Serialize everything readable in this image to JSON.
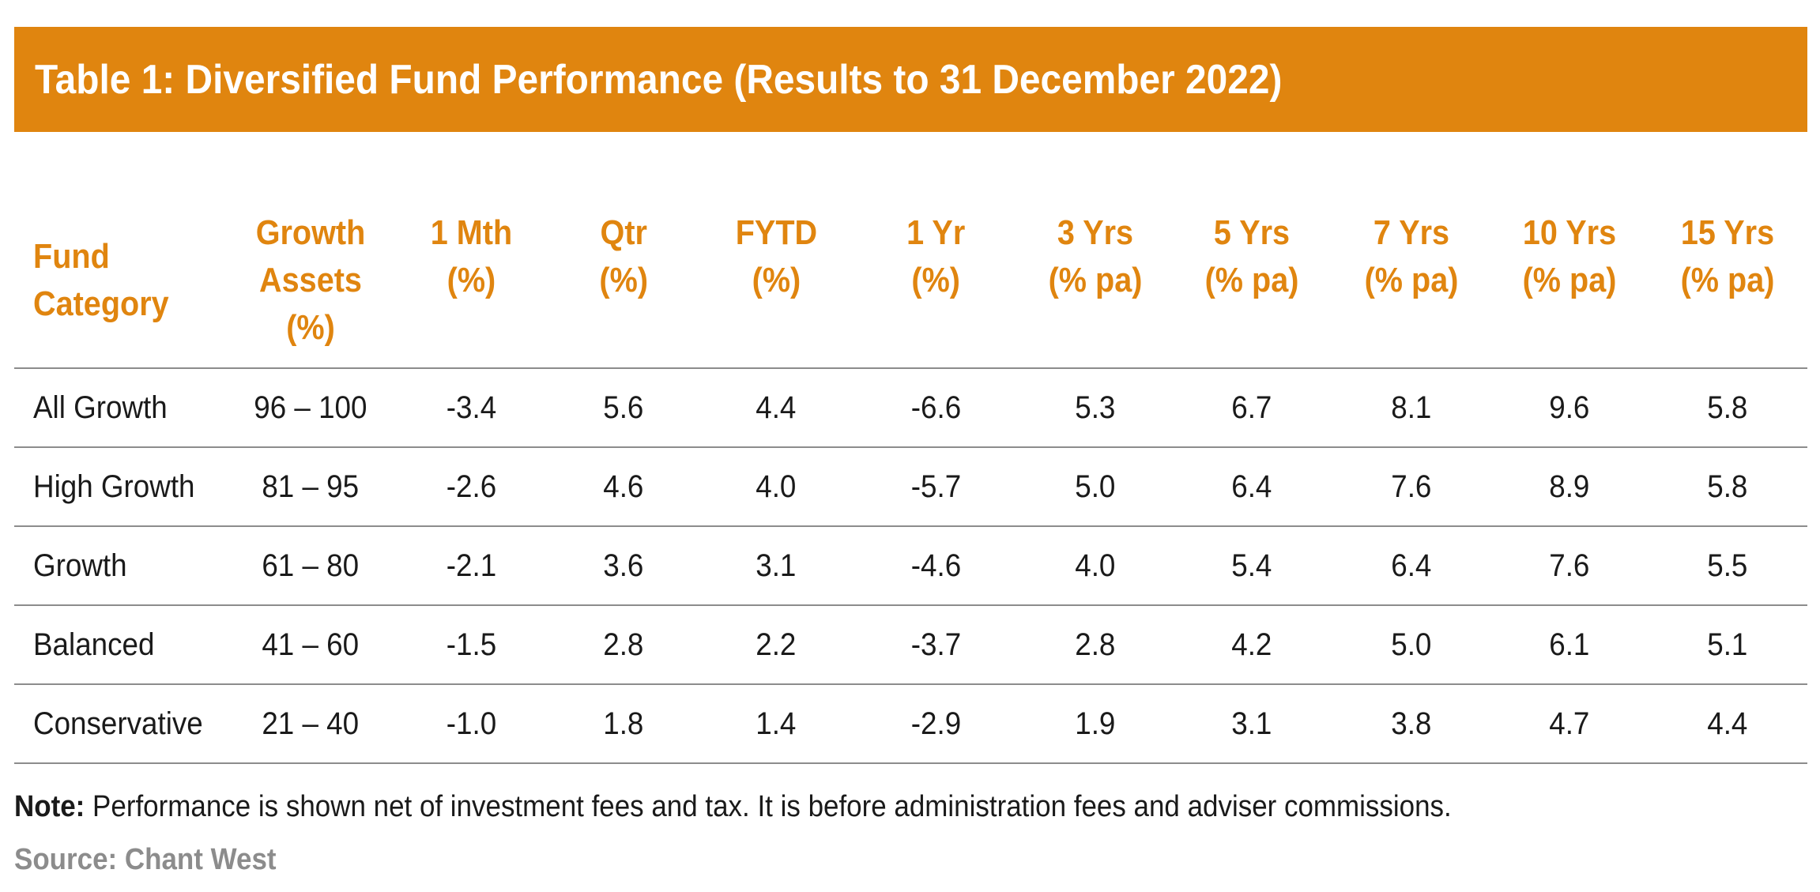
{
  "title": "Table 1:  Diversified Fund Performance (Results to 31 December 2022)",
  "colors": {
    "accent": "#e0850f",
    "source_text": "#8c8c8c",
    "rule": "#8c8c8c"
  },
  "table": {
    "headers": [
      [
        "Fund",
        "Category"
      ],
      [
        "Growth",
        "Assets",
        "(%)"
      ],
      [
        "1 Mth",
        "(%)"
      ],
      [
        "Qtr",
        "(%)"
      ],
      [
        "FYTD",
        "(%)"
      ],
      [
        "1 Yr",
        "(%)"
      ],
      [
        "3 Yrs",
        "(% pa)"
      ],
      [
        "5 Yrs",
        "(% pa)"
      ],
      [
        "7 Yrs",
        "(% pa)"
      ],
      [
        "10 Yrs",
        "(% pa)"
      ],
      [
        "15 Yrs",
        "(% pa)"
      ]
    ],
    "rows": [
      [
        "All Growth",
        "96 – 100",
        "-3.4",
        "5.6",
        "4.4",
        "-6.6",
        "5.3",
        "6.7",
        "8.1",
        "9.6",
        "5.8"
      ],
      [
        "High Growth",
        "81 – 95",
        "-2.6",
        "4.6",
        "4.0",
        "-5.7",
        "5.0",
        "6.4",
        "7.6",
        "8.9",
        "5.8"
      ],
      [
        "Growth",
        "61 – 80",
        "-2.1",
        "3.6",
        "3.1",
        "-4.6",
        "4.0",
        "5.4",
        "6.4",
        "7.6",
        "5.5"
      ],
      [
        "Balanced",
        "41 – 60",
        "-1.5",
        "2.8",
        "2.2",
        "-3.7",
        "2.8",
        "4.2",
        "5.0",
        "6.1",
        "5.1"
      ],
      [
        "Conservative",
        "21 – 40",
        "-1.0",
        "1.8",
        "1.4",
        "-2.9",
        "1.9",
        "3.1",
        "3.8",
        "4.7",
        "4.4"
      ]
    ]
  },
  "note": {
    "label": "Note:",
    "text": " Performance is shown net of investment fees and tax. It is before administration fees and adviser commissions."
  },
  "source": "Source: Chant West"
}
